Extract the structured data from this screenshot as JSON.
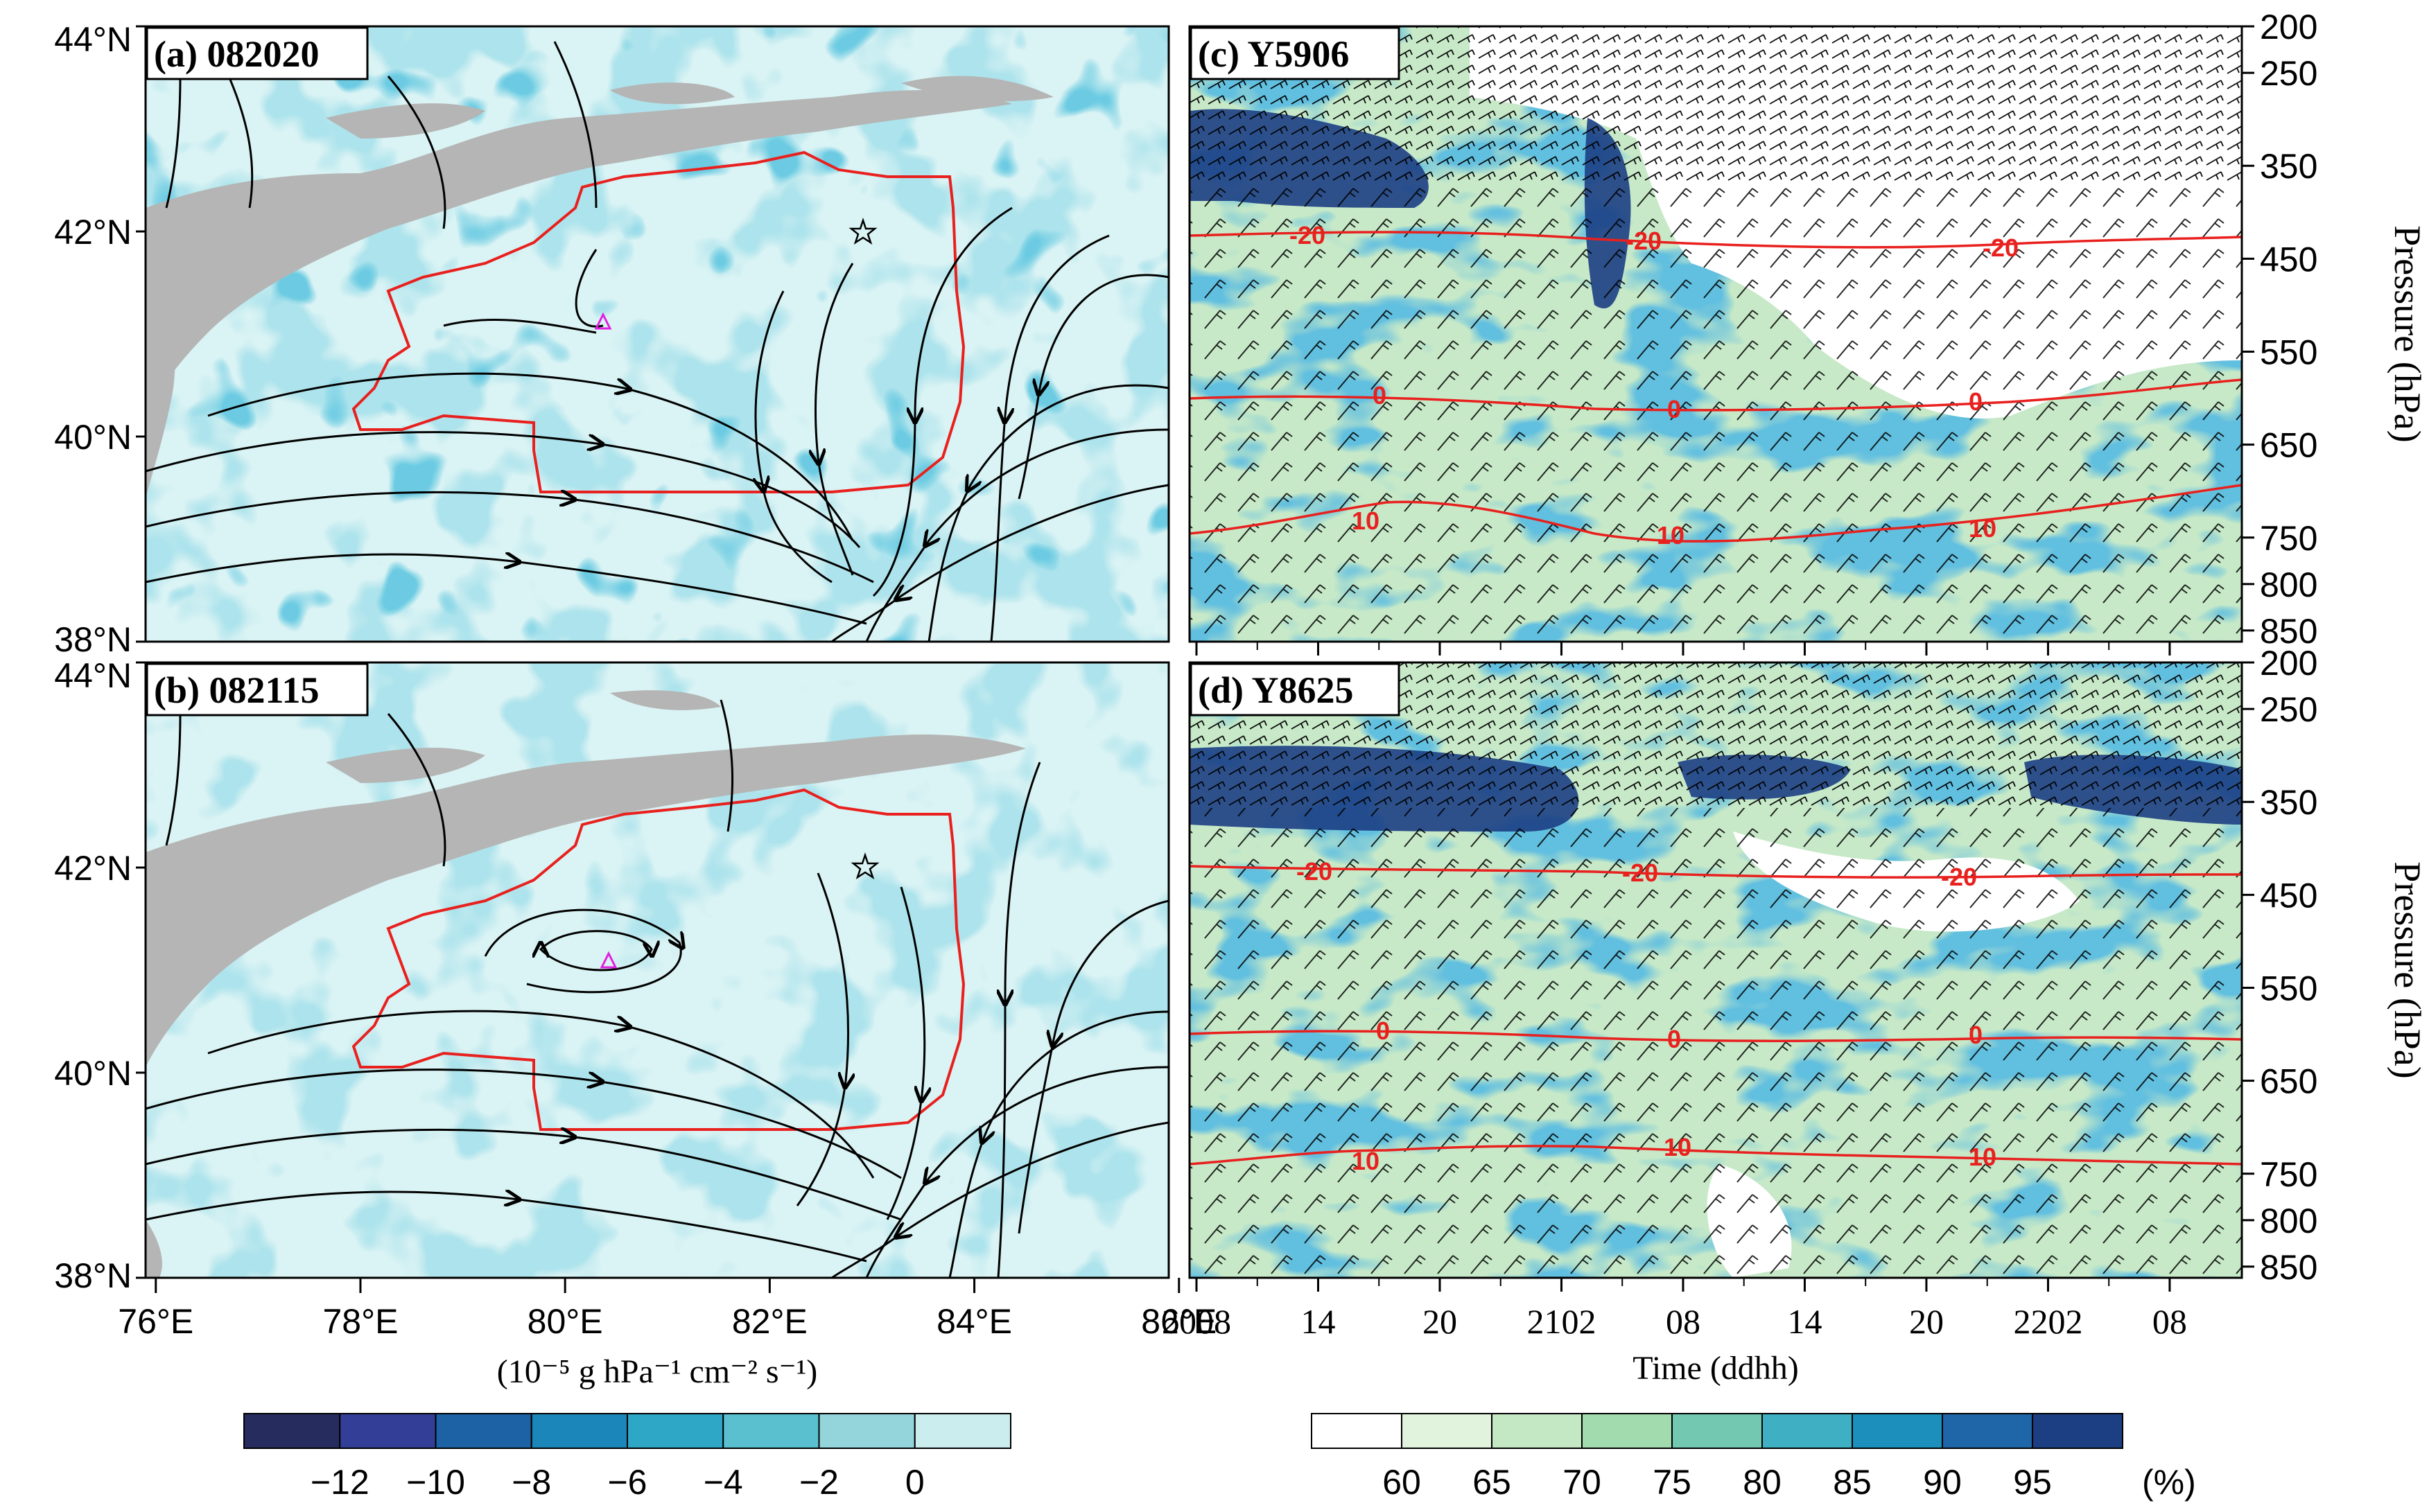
{
  "chart_data": [
    {
      "type": "map",
      "panel_label": "(a) 082020",
      "lon_ticks": [
        "76°E",
        "78°E",
        "80°E",
        "82°E",
        "84°E",
        "86°E"
      ],
      "lon_values": [
        76,
        78,
        80,
        82,
        84,
        86
      ],
      "lat_ticks": [
        "44°N",
        "42°N",
        "40°N",
        "38°N"
      ],
      "lat_values": [
        44,
        42,
        40,
        38
      ],
      "xlim": [
        75.9,
        85.9
      ],
      "ylim": [
        38,
        44
      ],
      "markers": {
        "star": [
          83.0,
          42.05
        ],
        "triangle": [
          80.5,
          41.1
        ]
      }
    },
    {
      "type": "map",
      "panel_label": "(b) 082115",
      "lon_ticks": [
        "76°E",
        "78°E",
        "80°E",
        "82°E",
        "84°E",
        "86°E"
      ],
      "lon_values": [
        76,
        78,
        80,
        82,
        84,
        86
      ],
      "lat_ticks": [
        "44°N",
        "42°N",
        "40°N",
        "38°N"
      ],
      "lat_values": [
        44,
        42,
        40,
        38
      ],
      "xlim": [
        75.9,
        85.9
      ],
      "ylim": [
        38,
        44
      ],
      "markers": {
        "star": [
          83.05,
          42.05
        ],
        "triangle": [
          80.5,
          41.1
        ]
      }
    },
    {
      "type": "heatmap",
      "panel_label": "(c) Y5906",
      "ylabel": "Pressure (hPa)",
      "y_ticks": [
        200,
        250,
        350,
        450,
        550,
        650,
        750,
        800,
        850
      ],
      "temperature_contours": [
        "-20",
        "0",
        "10"
      ]
    },
    {
      "type": "heatmap",
      "panel_label": "(d) Y8625",
      "ylabel": "Pressure (hPa)",
      "xlabel": "Time (ddhh)",
      "x_ticks": [
        "2008",
        "14",
        "20",
        "2102",
        "08",
        "14",
        "20",
        "2202",
        "08"
      ],
      "y_ticks": [
        200,
        250,
        350,
        450,
        550,
        650,
        750,
        800,
        850
      ],
      "temperature_contours": [
        "-20",
        "0",
        "10"
      ]
    }
  ],
  "colorbars": {
    "left": {
      "unit_label": "(10⁻⁵ g hPa⁻¹ cm⁻² s⁻¹)",
      "tick_labels": [
        "−12",
        "−10",
        "−8",
        "−6",
        "−4",
        "−2",
        "0"
      ],
      "colors": [
        "#262c5e",
        "#333f96",
        "#1c62a5",
        "#1b86b9",
        "#2ea7c7",
        "#5ac0cf",
        "#93d5da",
        "#cbedee"
      ]
    },
    "right": {
      "unit_label": "(%)",
      "tick_labels": [
        "60",
        "65",
        "70",
        "75",
        "80",
        "85",
        "90",
        "95"
      ],
      "colors": [
        "#ffffff",
        "#e2f3dd",
        "#c4e8c3",
        "#a2dbae",
        "#73c8b2",
        "#3fb0c3",
        "#1c8fbd",
        "#1f66a8",
        "#1c3f84"
      ]
    }
  },
  "colors": {
    "boundary": "#e8201e",
    "terrain": "#b5b5b5",
    "flux_base": "#daf3f4",
    "rh_base": "#c7e9c8",
    "marker_triangle": "#e020e0"
  }
}
